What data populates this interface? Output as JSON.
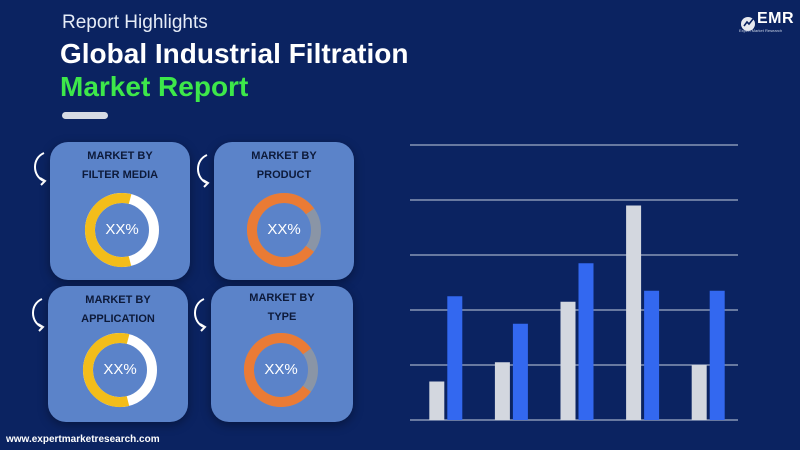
{
  "header": {
    "subtitle": "Report Highlights",
    "title_line1": "Global Industrial Filtration",
    "title_line2": "Market Report"
  },
  "logo": {
    "text": "EMR",
    "tagline": "Expert Market Research"
  },
  "cards": [
    {
      "label_line1": "MARKET BY",
      "label_line2": "FILTER MEDIA",
      "value": "XX%",
      "ring_color": "#f3bd1a",
      "track_color": "#ffffff",
      "fill_fraction": 0.58
    },
    {
      "label_line1": "MARKET BY",
      "label_line2": "PRODUCT",
      "value": "XX%",
      "ring_color": "#ea7b35",
      "track_color": "#8a95a6",
      "fill_fraction": 0.8
    },
    {
      "label_line1": "MARKET BY",
      "label_line2": "APPLICATION",
      "value": "XX%",
      "ring_color": "#f3bd1a",
      "track_color": "#ffffff",
      "fill_fraction": 0.58
    },
    {
      "label_line1": "MARKET BY",
      "label_line2": "TYPE",
      "value": "XX%",
      "ring_color": "#ea7b35",
      "track_color": "#8a95a6",
      "fill_fraction": 0.8
    }
  ],
  "chart_data": {
    "type": "bar",
    "categories": [
      "",
      "",
      "",
      "",
      ""
    ],
    "series": [
      {
        "color": "#d3d7df",
        "values": [
          0.7,
          1.05,
          2.15,
          3.9,
          1.0
        ]
      },
      {
        "color": "#3368f0",
        "values": [
          2.25,
          1.75,
          2.85,
          2.35,
          2.35
        ]
      }
    ],
    "ylim": [
      0,
      5
    ],
    "grid": true,
    "xlabel": "",
    "ylabel": ""
  },
  "colors": {
    "background": "#0b2361",
    "card": "#5b83c9",
    "accent_green": "#3de84a"
  },
  "footer": {
    "url": "www.expertmarketresearch.com"
  }
}
